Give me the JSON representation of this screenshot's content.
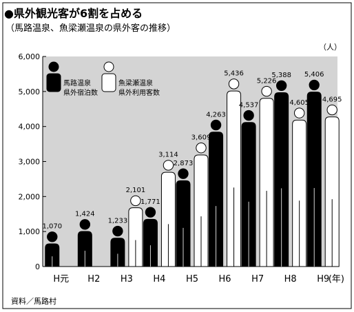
{
  "title": "●県外観光客が6割を占める",
  "subtitle": "（馬路温泉、魚梁瀬温泉の県外客の推移）",
  "source": "資料／馬路村",
  "chart_data": {
    "type": "bar",
    "unit": "（人）",
    "year_unit": "(年)",
    "categories": [
      "H元",
      "H2",
      "H3",
      "H4",
      "H5",
      "H6",
      "H7",
      "H8",
      "H9"
    ],
    "series": [
      {
        "name": "馬路温泉\n県外宿泊数",
        "color": "#000000",
        "values": [
          1070,
          1424,
          1233,
          1771,
          2873,
          4263,
          4537,
          5388,
          5406
        ]
      },
      {
        "name": "魚梁瀬温泉\n県外利用客数",
        "color": "#ffffff",
        "values": [
          null,
          null,
          2101,
          3114,
          3609,
          5436,
          5226,
          4605,
          4695
        ]
      }
    ],
    "ylim": [
      0,
      6000
    ],
    "yticks": [
      0,
      1000,
      2000,
      3000,
      4000,
      5000,
      6000
    ],
    "grid": false,
    "legend_position": "top-left",
    "background": "#d4d4d4"
  }
}
